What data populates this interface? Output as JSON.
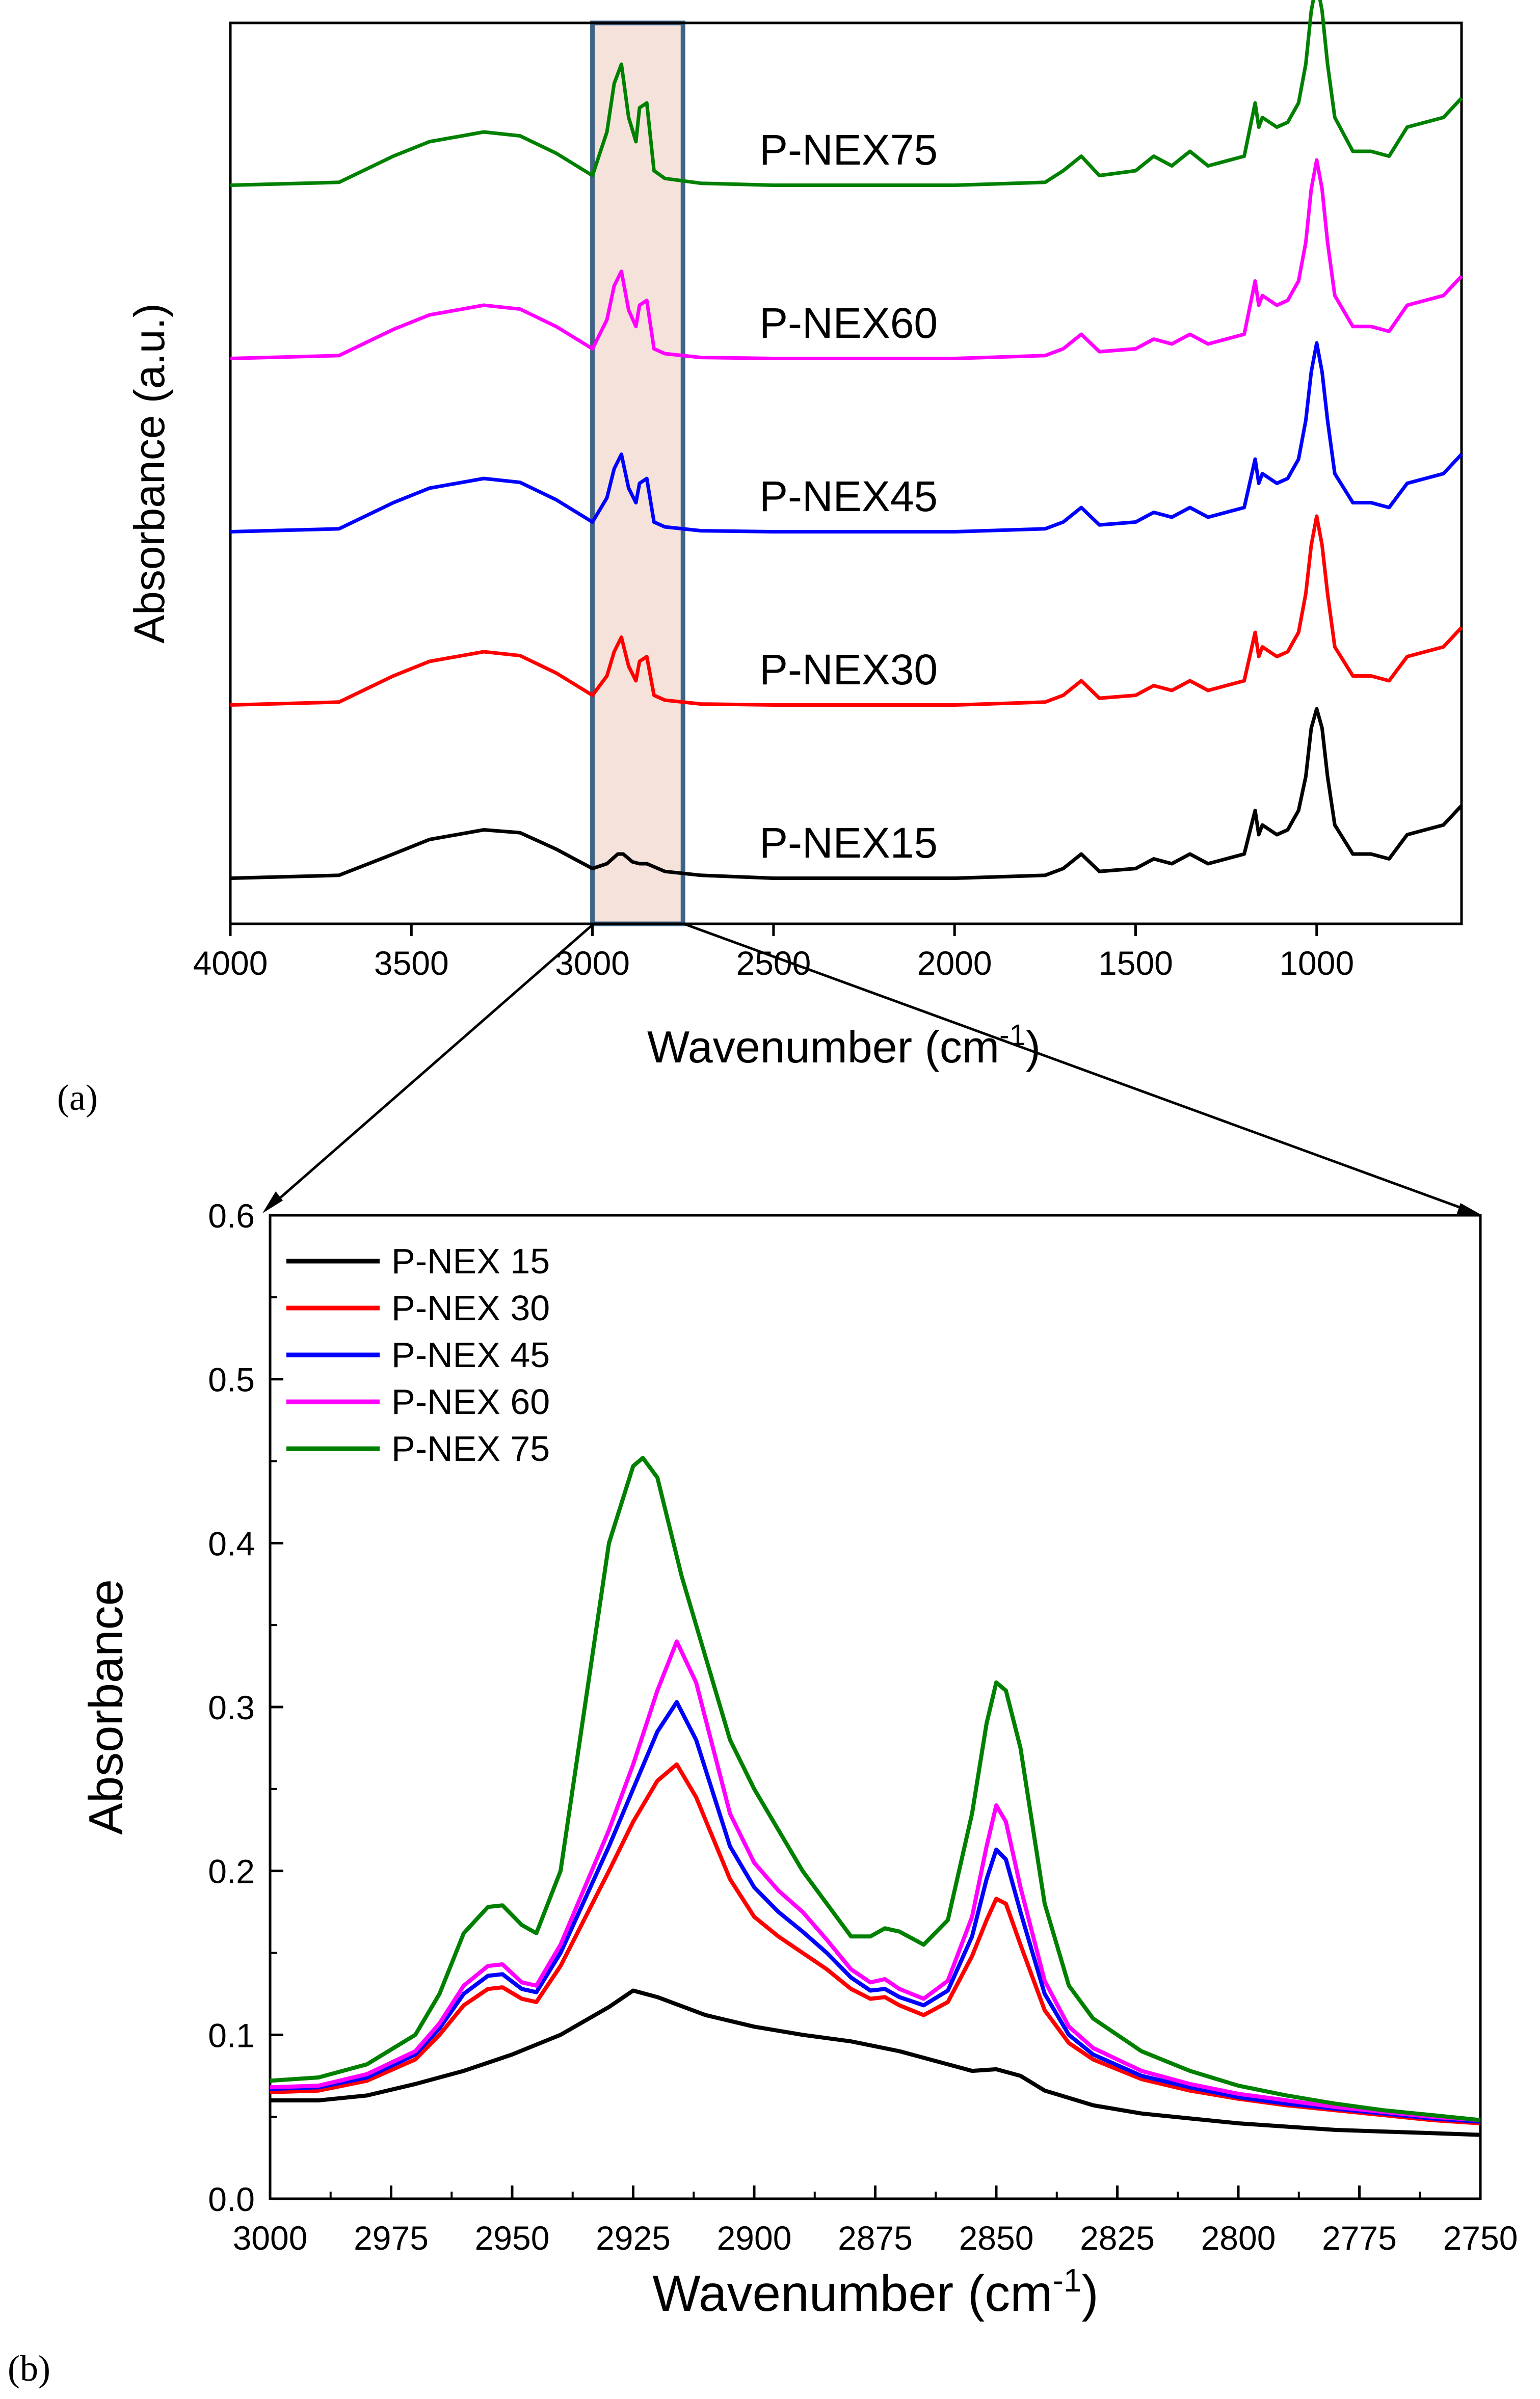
{
  "colors": {
    "P-NEX15": "#000000",
    "P-NEX30": "#ff0000",
    "P-NEX45": "#0000ff",
    "P-NEX60": "#ff00ff",
    "P-NEX75": "#008000",
    "highlight_fill": "#f5e3db",
    "highlight_stroke": "#3f6387"
  },
  "panels": {
    "a": {
      "label": "(a)"
    },
    "b": {
      "label": "(b)"
    }
  },
  "chart_data": [
    {
      "id": "a",
      "type": "line",
      "title": "",
      "xlabel": "Wavenumber (cm",
      "xlabel_sup": "-1",
      "xlabel_end": ")",
      "ylabel": "Absorbance (a.u.)",
      "xlim": [
        4000,
        600
      ],
      "x_reversed": true,
      "xticks": [
        4000,
        3500,
        3000,
        2500,
        2000,
        1500,
        1000
      ],
      "xtick_labels": [
        "4000",
        "3500",
        "3000",
        "2500",
        "2000",
        "1500",
        "1000"
      ],
      "y_ticks_shown": false,
      "stacked_offset": 1.0,
      "highlight_region": [
        3000,
        2750
      ],
      "series": [
        {
          "name": "P-NEX15",
          "label": "P-NEX15",
          "offset": 0,
          "x": [
            4000,
            3700,
            3550,
            3450,
            3300,
            3200,
            3100,
            3000,
            2960,
            2930,
            2915,
            2890,
            2870,
            2850,
            2800,
            2700,
            2500,
            2000,
            1750,
            1700,
            1650,
            1600,
            1500,
            1450,
            1400,
            1350,
            1300,
            1200,
            1170,
            1160,
            1150,
            1110,
            1080,
            1050,
            1030,
            1015,
            1000,
            985,
            970,
            950,
            900,
            850,
            800,
            750,
            700,
            650,
            600
          ],
          "y": [
            0.05,
            0.08,
            0.3,
            0.45,
            0.55,
            0.52,
            0.35,
            0.15,
            0.2,
            0.3,
            0.3,
            0.22,
            0.2,
            0.2,
            0.12,
            0.08,
            0.05,
            0.05,
            0.08,
            0.15,
            0.3,
            0.12,
            0.15,
            0.25,
            0.2,
            0.3,
            0.2,
            0.3,
            0.75,
            0.5,
            0.6,
            0.5,
            0.55,
            0.75,
            1.1,
            1.6,
            1.8,
            1.6,
            1.1,
            0.6,
            0.3,
            0.3,
            0.25,
            0.5,
            0.55,
            0.6,
            0.8
          ]
        },
        {
          "name": "P-NEX30",
          "label": "P-NEX30",
          "offset": 1,
          "x": [
            4000,
            3700,
            3550,
            3450,
            3300,
            3200,
            3100,
            3000,
            2960,
            2940,
            2920,
            2900,
            2880,
            2870,
            2850,
            2830,
            2800,
            2700,
            2500,
            2000,
            1750,
            1700,
            1650,
            1600,
            1500,
            1450,
            1400,
            1350,
            1300,
            1200,
            1170,
            1160,
            1150,
            1110,
            1080,
            1050,
            1030,
            1015,
            1000,
            985,
            970,
            950,
            900,
            850,
            800,
            750,
            700,
            650,
            600
          ],
          "y": [
            0.05,
            0.08,
            0.35,
            0.5,
            0.6,
            0.56,
            0.38,
            0.15,
            0.35,
            0.6,
            0.75,
            0.45,
            0.3,
            0.5,
            0.55,
            0.15,
            0.1,
            0.06,
            0.05,
            0.05,
            0.08,
            0.15,
            0.3,
            0.12,
            0.15,
            0.25,
            0.2,
            0.3,
            0.2,
            0.3,
            0.8,
            0.55,
            0.65,
            0.55,
            0.6,
            0.8,
            1.2,
            1.7,
            2.0,
            1.7,
            1.2,
            0.65,
            0.35,
            0.35,
            0.3,
            0.55,
            0.6,
            0.65,
            0.85
          ]
        },
        {
          "name": "P-NEX45",
          "label": "P-NEX45",
          "offset": 2,
          "x": [
            4000,
            3700,
            3550,
            3450,
            3300,
            3200,
            3100,
            3000,
            2960,
            2940,
            2920,
            2900,
            2880,
            2870,
            2850,
            2830,
            2800,
            2700,
            2500,
            2000,
            1750,
            1700,
            1650,
            1600,
            1500,
            1450,
            1400,
            1350,
            1300,
            1200,
            1170,
            1160,
            1150,
            1110,
            1080,
            1050,
            1030,
            1015,
            1000,
            985,
            970,
            950,
            900,
            850,
            800,
            750,
            700,
            650,
            600
          ],
          "y": [
            0.05,
            0.08,
            0.35,
            0.5,
            0.6,
            0.56,
            0.38,
            0.15,
            0.4,
            0.7,
            0.85,
            0.5,
            0.35,
            0.55,
            0.6,
            0.15,
            0.1,
            0.06,
            0.05,
            0.05,
            0.08,
            0.15,
            0.3,
            0.12,
            0.15,
            0.25,
            0.2,
            0.3,
            0.2,
            0.3,
            0.8,
            0.55,
            0.65,
            0.55,
            0.6,
            0.8,
            1.2,
            1.7,
            2.0,
            1.7,
            1.2,
            0.65,
            0.35,
            0.35,
            0.3,
            0.55,
            0.6,
            0.65,
            0.85
          ]
        },
        {
          "name": "P-NEX60",
          "label": "P-NEX60",
          "offset": 3,
          "x": [
            4000,
            3700,
            3550,
            3450,
            3300,
            3200,
            3100,
            3000,
            2960,
            2940,
            2920,
            2900,
            2880,
            2870,
            2850,
            2830,
            2800,
            2700,
            2500,
            2000,
            1750,
            1700,
            1650,
            1600,
            1500,
            1450,
            1400,
            1350,
            1300,
            1200,
            1170,
            1160,
            1150,
            1110,
            1080,
            1050,
            1030,
            1015,
            1000,
            985,
            970,
            950,
            900,
            850,
            800,
            750,
            700,
            650,
            600
          ],
          "y": [
            0.05,
            0.08,
            0.35,
            0.5,
            0.6,
            0.56,
            0.38,
            0.15,
            0.45,
            0.8,
            0.95,
            0.55,
            0.38,
            0.6,
            0.65,
            0.15,
            0.1,
            0.06,
            0.05,
            0.05,
            0.08,
            0.15,
            0.3,
            0.12,
            0.15,
            0.25,
            0.2,
            0.3,
            0.2,
            0.3,
            0.85,
            0.6,
            0.7,
            0.6,
            0.65,
            0.85,
            1.25,
            1.8,
            2.1,
            1.8,
            1.25,
            0.7,
            0.38,
            0.38,
            0.33,
            0.6,
            0.65,
            0.7,
            0.9
          ]
        },
        {
          "name": "P-NEX75",
          "label": "P-NEX75",
          "offset": 4,
          "x": [
            4000,
            3700,
            3550,
            3450,
            3300,
            3200,
            3100,
            3000,
            2960,
            2940,
            2920,
            2900,
            2880,
            2870,
            2850,
            2830,
            2800,
            2700,
            2500,
            2000,
            1750,
            1700,
            1650,
            1600,
            1500,
            1450,
            1400,
            1350,
            1300,
            1200,
            1170,
            1160,
            1150,
            1110,
            1080,
            1050,
            1030,
            1015,
            1000,
            985,
            970,
            950,
            900,
            850,
            800,
            750,
            700,
            650,
            600
          ],
          "y": [
            0.05,
            0.08,
            0.35,
            0.5,
            0.6,
            0.56,
            0.38,
            0.15,
            0.6,
            1.1,
            1.3,
            0.75,
            0.5,
            0.85,
            0.9,
            0.2,
            0.12,
            0.07,
            0.05,
            0.05,
            0.08,
            0.2,
            0.35,
            0.15,
            0.2,
            0.35,
            0.25,
            0.4,
            0.25,
            0.35,
            0.9,
            0.65,
            0.75,
            0.65,
            0.7,
            0.9,
            1.3,
            1.85,
            2.15,
            1.85,
            1.3,
            0.75,
            0.4,
            0.4,
            0.35,
            0.65,
            0.7,
            0.75,
            0.95
          ]
        }
      ]
    },
    {
      "id": "b",
      "type": "line",
      "title": "",
      "xlabel": "Wavenumber (cm",
      "xlabel_sup": "-1",
      "xlabel_end": ")",
      "ylabel": "Absorbance",
      "xlim": [
        3000,
        2750
      ],
      "x_reversed": true,
      "ylim": [
        0.0,
        0.6
      ],
      "xticks": [
        3000,
        2975,
        2950,
        2925,
        2900,
        2875,
        2850,
        2825,
        2800,
        2775,
        2750
      ],
      "xtick_labels": [
        "3000",
        "2975",
        "2950",
        "2925",
        "2900",
        "2875",
        "2850",
        "2825",
        "2800",
        "2775",
        "2750"
      ],
      "yticks": [
        0.0,
        0.1,
        0.2,
        0.3,
        0.4,
        0.5,
        0.6
      ],
      "ytick_labels": [
        "0.0",
        "0.1",
        "0.2",
        "0.3",
        "0.4",
        "0.5",
        "0.6"
      ],
      "legend_position": "top-left",
      "series": [
        {
          "name": "P-NEX15",
          "label": "P-NEX 15",
          "x": [
            3000,
            2990,
            2980,
            2970,
            2960,
            2950,
            2940,
            2930,
            2925,
            2920,
            2910,
            2900,
            2890,
            2880,
            2870,
            2860,
            2855,
            2850,
            2845,
            2840,
            2830,
            2820,
            2810,
            2800,
            2790,
            2780,
            2770,
            2760,
            2750
          ],
          "y": [
            0.06,
            0.06,
            0.063,
            0.07,
            0.078,
            0.088,
            0.1,
            0.117,
            0.127,
            0.123,
            0.112,
            0.105,
            0.1,
            0.096,
            0.09,
            0.082,
            0.078,
            0.079,
            0.075,
            0.066,
            0.057,
            0.052,
            0.049,
            0.046,
            0.044,
            0.042,
            0.041,
            0.04,
            0.039
          ]
        },
        {
          "name": "P-NEX30",
          "label": "P-NEX 30",
          "x": [
            3000,
            2990,
            2980,
            2970,
            2965,
            2960,
            2955,
            2952,
            2948,
            2945,
            2940,
            2930,
            2925,
            2920,
            2916,
            2912,
            2905,
            2900,
            2895,
            2890,
            2885,
            2880,
            2876,
            2873,
            2870,
            2865,
            2860,
            2855,
            2852,
            2850,
            2848,
            2845,
            2840,
            2835,
            2830,
            2820,
            2810,
            2800,
            2790,
            2780,
            2770,
            2760,
            2750
          ],
          "y": [
            0.065,
            0.066,
            0.072,
            0.085,
            0.1,
            0.118,
            0.128,
            0.129,
            0.122,
            0.12,
            0.142,
            0.2,
            0.23,
            0.255,
            0.265,
            0.245,
            0.195,
            0.172,
            0.16,
            0.15,
            0.14,
            0.128,
            0.122,
            0.123,
            0.118,
            0.112,
            0.12,
            0.148,
            0.17,
            0.183,
            0.18,
            0.155,
            0.115,
            0.095,
            0.085,
            0.073,
            0.066,
            0.061,
            0.057,
            0.054,
            0.051,
            0.048,
            0.046
          ]
        },
        {
          "name": "P-NEX45",
          "label": "P-NEX 45",
          "x": [
            3000,
            2990,
            2980,
            2970,
            2965,
            2960,
            2955,
            2952,
            2948,
            2945,
            2940,
            2930,
            2925,
            2920,
            2916,
            2912,
            2905,
            2900,
            2895,
            2890,
            2885,
            2880,
            2876,
            2873,
            2870,
            2865,
            2860,
            2855,
            2852,
            2850,
            2848,
            2845,
            2840,
            2835,
            2830,
            2820,
            2810,
            2800,
            2790,
            2780,
            2770,
            2760,
            2750
          ],
          "y": [
            0.067,
            0.068,
            0.074,
            0.088,
            0.104,
            0.125,
            0.136,
            0.137,
            0.128,
            0.126,
            0.15,
            0.215,
            0.25,
            0.285,
            0.303,
            0.28,
            0.215,
            0.19,
            0.175,
            0.163,
            0.15,
            0.135,
            0.127,
            0.128,
            0.123,
            0.118,
            0.127,
            0.16,
            0.195,
            0.213,
            0.207,
            0.175,
            0.125,
            0.1,
            0.088,
            0.075,
            0.068,
            0.062,
            0.058,
            0.055,
            0.052,
            0.049,
            0.047
          ]
        },
        {
          "name": "P-NEX60",
          "label": "P-NEX 60",
          "x": [
            3000,
            2990,
            2980,
            2970,
            2965,
            2960,
            2955,
            2952,
            2948,
            2945,
            2940,
            2930,
            2925,
            2920,
            2916,
            2912,
            2905,
            2900,
            2895,
            2890,
            2885,
            2880,
            2876,
            2873,
            2870,
            2865,
            2860,
            2855,
            2852,
            2850,
            2848,
            2845,
            2840,
            2835,
            2830,
            2820,
            2810,
            2800,
            2790,
            2780,
            2770,
            2760,
            2750
          ],
          "y": [
            0.068,
            0.069,
            0.076,
            0.09,
            0.107,
            0.13,
            0.142,
            0.143,
            0.132,
            0.13,
            0.155,
            0.225,
            0.265,
            0.31,
            0.34,
            0.315,
            0.235,
            0.205,
            0.188,
            0.175,
            0.158,
            0.14,
            0.132,
            0.134,
            0.128,
            0.122,
            0.133,
            0.172,
            0.215,
            0.24,
            0.23,
            0.19,
            0.133,
            0.105,
            0.092,
            0.078,
            0.07,
            0.064,
            0.06,
            0.056,
            0.053,
            0.05,
            0.048
          ]
        },
        {
          "name": "P-NEX75",
          "label": "P-NEX 75",
          "x": [
            3000,
            2990,
            2980,
            2970,
            2965,
            2960,
            2955,
            2952,
            2948,
            2945,
            2940,
            2935,
            2930,
            2925,
            2923,
            2920,
            2915,
            2910,
            2905,
            2900,
            2895,
            2890,
            2885,
            2880,
            2876,
            2873,
            2870,
            2865,
            2860,
            2855,
            2852,
            2850,
            2848,
            2845,
            2840,
            2835,
            2830,
            2820,
            2810,
            2800,
            2790,
            2780,
            2770,
            2760,
            2750
          ],
          "y": [
            0.072,
            0.074,
            0.082,
            0.1,
            0.125,
            0.162,
            0.178,
            0.179,
            0.167,
            0.162,
            0.2,
            0.3,
            0.4,
            0.447,
            0.452,
            0.44,
            0.38,
            0.33,
            0.28,
            0.25,
            0.225,
            0.2,
            0.18,
            0.16,
            0.16,
            0.165,
            0.163,
            0.155,
            0.17,
            0.235,
            0.29,
            0.315,
            0.31,
            0.275,
            0.18,
            0.13,
            0.11,
            0.09,
            0.078,
            0.069,
            0.063,
            0.058,
            0.054,
            0.051,
            0.048
          ]
        }
      ]
    }
  ]
}
